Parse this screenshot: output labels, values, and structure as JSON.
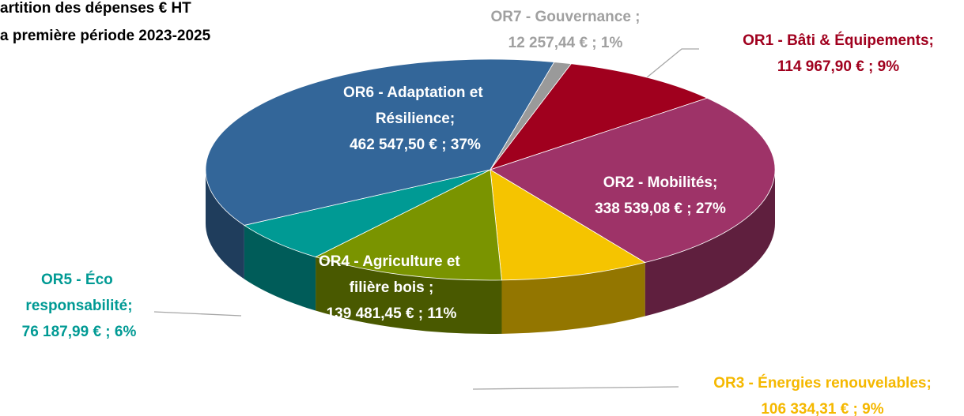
{
  "chart_data": {
    "type": "pie",
    "title": [
      "artition des dépenses € HT",
      "a première période 2023-2025"
    ],
    "categories": [
      "OR1 - Bâti & Équipements;",
      "OR2 - Mobilités;",
      "OR3 - Énergies renouvelables;",
      "OR4 - Agriculture et filière bois ;",
      "OR5 - Éco responsabilité;",
      "OR6 - Adaptation et Résilience;",
      "OR7 - Gouvernance ;"
    ],
    "values": [
      114967.9,
      338539.08,
      106334.31,
      139481.45,
      76187.99,
      462547.5,
      12257.44
    ],
    "value_labels": [
      "114 967,90 € ; 9%",
      "338 539,08 € ; 27%",
      "106 334,31 € ; 9%",
      "139 481,45 € ; 11%",
      "76 187,99 € ; 6%",
      "462 547,50 € ; 37%",
      "12 257,44 € ; 1%"
    ],
    "colors": [
      "#a0001e",
      "#9e3368",
      "#f5c400",
      "#7a9400",
      "#009a94",
      "#336699",
      "#9a9a9a"
    ],
    "label_colors": [
      "#a0001e",
      "#ffffff",
      "#f5b800",
      "#ffffff",
      "#009a94",
      "#ffffff",
      "#a0a0a0"
    ]
  }
}
